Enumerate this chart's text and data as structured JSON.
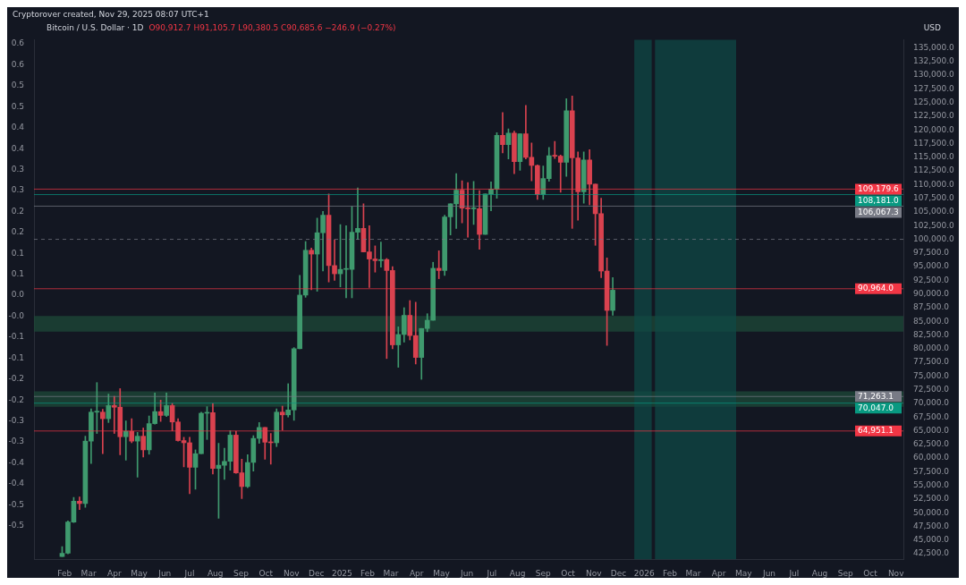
{
  "chart_data": {
    "type": "candlestick",
    "title": "Bitcoin / U.S. Dollar · 1D",
    "subtitle": "O90,912.7 H91,105.7 L90,380.5 C90,685.6 −246.9 (−0.27%)",
    "ylabel": "USD",
    "annotations": [
      "Cryptorover created, Nov 29, 2025 08:07 UTC+1"
    ],
    "x": [
      "2024-01-29",
      "2024-02-05",
      "2024-02-12",
      "2024-02-19",
      "2024-02-26",
      "2024-03-04",
      "2024-03-11",
      "2024-03-18",
      "2024-03-25",
      "2024-04-01",
      "2024-04-08",
      "2024-04-15",
      "2024-04-22",
      "2024-04-29",
      "2024-05-06",
      "2024-05-13",
      "2024-05-20",
      "2024-05-27",
      "2024-06-03",
      "2024-06-10",
      "2024-06-17",
      "2024-06-24",
      "2024-07-01",
      "2024-07-08",
      "2024-07-15",
      "2024-07-22",
      "2024-07-29",
      "2024-08-05",
      "2024-08-12",
      "2024-08-19",
      "2024-08-26",
      "2024-09-02",
      "2024-09-09",
      "2024-09-16",
      "2024-09-23",
      "2024-09-30",
      "2024-10-07",
      "2024-10-14",
      "2024-10-21",
      "2024-10-28",
      "2024-11-04",
      "2024-11-11",
      "2024-11-18",
      "2024-11-25",
      "2024-12-02",
      "2024-12-09",
      "2024-12-16",
      "2024-12-23",
      "2024-12-30",
      "2025-01-06",
      "2025-01-13",
      "2025-01-20",
      "2025-01-27",
      "2025-02-03",
      "2025-02-10",
      "2025-02-17",
      "2025-02-24",
      "2025-03-03",
      "2025-03-10",
      "2025-03-17",
      "2025-03-24",
      "2025-03-31",
      "2025-04-07",
      "2025-04-14",
      "2025-04-21",
      "2025-04-28",
      "2025-05-05",
      "2025-05-12",
      "2025-05-19",
      "2025-05-26",
      "2025-06-02",
      "2025-06-09",
      "2025-06-16",
      "2025-06-23",
      "2025-06-30",
      "2025-07-07",
      "2025-07-14",
      "2025-07-21",
      "2025-07-28",
      "2025-08-04",
      "2025-08-11",
      "2025-08-18",
      "2025-08-25",
      "2025-09-01",
      "2025-09-08",
      "2025-09-15",
      "2025-09-22",
      "2025-09-29",
      "2025-10-06",
      "2025-10-13",
      "2025-10-20",
      "2025-10-27",
      "2025-11-03",
      "2025-11-10",
      "2025-11-17",
      "2025-11-24"
    ],
    "ohlc": [
      [
        42000,
        43800,
        42000,
        42600
      ],
      [
        42600,
        48500,
        42500,
        48300
      ],
      [
        48300,
        52800,
        48200,
        52100
      ],
      [
        52100,
        52900,
        50600,
        51700
      ],
      [
        51700,
        64000,
        51000,
        63100
      ],
      [
        63100,
        69000,
        59000,
        68400
      ],
      [
        68400,
        73800,
        64500,
        68400
      ],
      [
        68400,
        68900,
        60800,
        67200
      ],
      [
        67200,
        71700,
        66500,
        69600
      ],
      [
        69600,
        71300,
        64500,
        69300
      ],
      [
        69300,
        72700,
        60600,
        63900
      ],
      [
        63900,
        66800,
        59600,
        64900
      ],
      [
        64900,
        67200,
        62800,
        63100
      ],
      [
        63100,
        64700,
        56500,
        64000
      ],
      [
        64000,
        65500,
        60200,
        61500
      ],
      [
        61500,
        67700,
        60700,
        66300
      ],
      [
        66300,
        71900,
        66200,
        68500
      ],
      [
        68500,
        70600,
        66700,
        67800
      ],
      [
        67800,
        71900,
        67600,
        69600
      ],
      [
        69600,
        70000,
        65000,
        66600
      ],
      [
        66600,
        67200,
        63100,
        63200
      ],
      [
        63200,
        63800,
        58400,
        62800
      ],
      [
        62800,
        63800,
        53500,
        58300
      ],
      [
        58300,
        61500,
        54300,
        60800
      ],
      [
        60800,
        68400,
        60800,
        68200
      ],
      [
        68200,
        69400,
        63400,
        68300
      ],
      [
        68300,
        70000,
        57100,
        58100
      ],
      [
        58100,
        62700,
        49000,
        58700
      ],
      [
        58700,
        61800,
        56100,
        59400
      ],
      [
        59400,
        65000,
        57800,
        64200
      ],
      [
        64200,
        64900,
        57200,
        57300
      ],
      [
        57300,
        59800,
        52600,
        54800
      ],
      [
        54800,
        60600,
        54600,
        59200
      ],
      [
        59200,
        64100,
        57600,
        63600
      ],
      [
        63600,
        66500,
        62700,
        65600
      ],
      [
        65600,
        65600,
        59800,
        62900
      ],
      [
        62900,
        64500,
        58900,
        62800
      ],
      [
        62800,
        69000,
        62100,
        68400
      ],
      [
        68400,
        69500,
        65100,
        67900
      ],
      [
        67900,
        73600,
        67500,
        68800
      ],
      [
        68800,
        80200,
        66900,
        80000
      ],
      [
        80000,
        93400,
        80000,
        89800
      ],
      [
        89800,
        99600,
        89400,
        98000
      ],
      [
        98000,
        98400,
        90800,
        97300
      ],
      [
        97300,
        103900,
        90500,
        101200
      ],
      [
        101200,
        105100,
        94200,
        104400
      ],
      [
        104400,
        108300,
        92200,
        95200
      ],
      [
        95200,
        99900,
        92500,
        93700
      ],
      [
        93700,
        102700,
        91300,
        94500
      ],
      [
        94500,
        102500,
        89300,
        94500
      ],
      [
        94500,
        106000,
        89300,
        101300
      ],
      [
        101300,
        109400,
        100000,
        102000
      ],
      [
        102000,
        106500,
        97700,
        97700
      ],
      [
        97700,
        102500,
        91200,
        96400
      ],
      [
        96400,
        98800,
        94000,
        96100
      ],
      [
        96100,
        99500,
        94900,
        96300
      ],
      [
        96300,
        96500,
        78200,
        94300
      ],
      [
        94300,
        95000,
        80000,
        80700
      ],
      [
        80700,
        84000,
        76600,
        82600
      ],
      [
        82600,
        87500,
        81200,
        86100
      ],
      [
        86100,
        88800,
        81600,
        82400
      ],
      [
        82400,
        88500,
        77200,
        78400
      ],
      [
        78400,
        83700,
        74400,
        83700
      ],
      [
        83700,
        86400,
        83100,
        85200
      ],
      [
        85200,
        95800,
        85200,
        94700
      ],
      [
        94700,
        97900,
        92800,
        94300
      ],
      [
        94300,
        104400,
        93400,
        104100
      ],
      [
        104100,
        106500,
        100800,
        106500
      ],
      [
        106500,
        112000,
        102000,
        109000
      ],
      [
        109000,
        110700,
        103000,
        105700
      ],
      [
        105700,
        110400,
        100400,
        105600
      ],
      [
        105600,
        110600,
        102700,
        105600
      ],
      [
        105600,
        108900,
        98200,
        100900
      ],
      [
        100900,
        108300,
        100900,
        108300
      ],
      [
        108300,
        110500,
        105200,
        109200
      ],
      [
        109200,
        119500,
        107500,
        119000
      ],
      [
        119000,
        123200,
        115800,
        117300
      ],
      [
        117300,
        120200,
        114700,
        119400
      ],
      [
        119400,
        119800,
        112000,
        114200
      ],
      [
        114200,
        119300,
        112600,
        119300
      ],
      [
        119300,
        124500,
        114700,
        115000
      ],
      [
        115000,
        117600,
        110700,
        113500
      ],
      [
        113500,
        113600,
        107300,
        108200
      ],
      [
        108200,
        113400,
        107300,
        111100
      ],
      [
        111100,
        116800,
        110600,
        115300
      ],
      [
        115300,
        117900,
        114800,
        115200
      ],
      [
        115200,
        115400,
        108600,
        114100
      ],
      [
        114100,
        125700,
        111500,
        123500
      ],
      [
        123500,
        126200,
        102000,
        114900
      ],
      [
        114900,
        116000,
        103500,
        108700
      ],
      [
        108700,
        116000,
        106600,
        114500
      ],
      [
        114500,
        116400,
        106300,
        110100
      ],
      [
        110100,
        110100,
        98900,
        104700
      ],
      [
        104700,
        107500,
        93000,
        94200
      ],
      [
        94200,
        96600,
        80600,
        87000
      ],
      [
        87000,
        93000,
        86100,
        90700
      ]
    ],
    "xlim": [
      "2023-12-26",
      "2026-11-10"
    ],
    "xticks": [
      {
        "value": "2024-02-01",
        "label": "Feb"
      },
      {
        "value": "2024-03-01",
        "label": "Mar"
      },
      {
        "value": "2024-04-01",
        "label": "Apr"
      },
      {
        "value": "2024-05-01",
        "label": "May"
      },
      {
        "value": "2024-06-01",
        "label": "Jun"
      },
      {
        "value": "2024-07-01",
        "label": "Jul"
      },
      {
        "value": "2024-08-01",
        "label": "Aug"
      },
      {
        "value": "2024-09-01",
        "label": "Sep"
      },
      {
        "value": "2024-10-01",
        "label": "Oct"
      },
      {
        "value": "2024-11-01",
        "label": "Nov"
      },
      {
        "value": "2024-12-01",
        "label": "Dec"
      },
      {
        "value": "2025-01-01",
        "label": "2025"
      },
      {
        "value": "2025-02-01",
        "label": "Feb"
      },
      {
        "value": "2025-03-01",
        "label": "Mar"
      },
      {
        "value": "2025-04-01",
        "label": "Apr"
      },
      {
        "value": "2025-05-01",
        "label": "May"
      },
      {
        "value": "2025-06-01",
        "label": "Jun"
      },
      {
        "value": "2025-07-01",
        "label": "Jul"
      },
      {
        "value": "2025-08-01",
        "label": "Aug"
      },
      {
        "value": "2025-09-01",
        "label": "Sep"
      },
      {
        "value": "2025-10-01",
        "label": "Oct"
      },
      {
        "value": "2025-11-01",
        "label": "Nov"
      },
      {
        "value": "2025-12-01",
        "label": "Dec"
      },
      {
        "value": "2026-01-01",
        "label": "2026"
      },
      {
        "value": "2026-02-01",
        "label": "Feb"
      },
      {
        "value": "2026-03-01",
        "label": "Mar"
      },
      {
        "value": "2026-04-01",
        "label": "Apr"
      },
      {
        "value": "2026-05-01",
        "label": "May"
      },
      {
        "value": "2026-06-01",
        "label": "Jun"
      },
      {
        "value": "2026-07-01",
        "label": "Jul"
      },
      {
        "value": "2026-08-01",
        "label": "Aug"
      },
      {
        "value": "2026-09-01",
        "label": "Sep"
      },
      {
        "value": "2026-10-01",
        "label": "Oct"
      },
      {
        "value": "2026-11-01",
        "label": "Nov"
      }
    ],
    "ylim": [
      41500,
      136500
    ],
    "yticks": [
      {
        "value": 42500,
        "label": "42,500.0"
      },
      {
        "value": 45000,
        "label": "45,000.0"
      },
      {
        "value": 47500,
        "label": "47,500.0"
      },
      {
        "value": 50000,
        "label": "50,000.0"
      },
      {
        "value": 52500,
        "label": "52,500.0"
      },
      {
        "value": 55000,
        "label": "55,000.0"
      },
      {
        "value": 57500,
        "label": "57,500.0"
      },
      {
        "value": 60000,
        "label": "60,000.0"
      },
      {
        "value": 62500,
        "label": "62,500.0"
      },
      {
        "value": 65000,
        "label": "65,000.0"
      },
      {
        "value": 67500,
        "label": "67,500.0"
      },
      {
        "value": 70000,
        "label": "70,000.0"
      },
      {
        "value": 72500,
        "label": "72,500.0"
      },
      {
        "value": 75000,
        "label": "75,000.0"
      },
      {
        "value": 77500,
        "label": "77,500.0"
      },
      {
        "value": 80000,
        "label": "80,000.0"
      },
      {
        "value": 82500,
        "label": "82,500.0"
      },
      {
        "value": 85000,
        "label": "85,000.0"
      },
      {
        "value": 87500,
        "label": "87,500.0"
      },
      {
        "value": 90000,
        "label": "90,000.0"
      },
      {
        "value": 92500,
        "label": "92,500.0"
      },
      {
        "value": 95000,
        "label": "95,000.0"
      },
      {
        "value": 97500,
        "label": "97,500.0"
      },
      {
        "value": 100000,
        "label": "100,000.0"
      },
      {
        "value": 102500,
        "label": "102,500.0"
      },
      {
        "value": 105000,
        "label": "105,000.0"
      },
      {
        "value": 107500,
        "label": "107,500.0"
      },
      {
        "value": 110000,
        "label": "110,000.0"
      },
      {
        "value": 112500,
        "label": "112,500.0"
      },
      {
        "value": 115000,
        "label": "115,000.0"
      },
      {
        "value": 117500,
        "label": "117,500.0"
      },
      {
        "value": 120000,
        "label": "120,000.0"
      },
      {
        "value": 122500,
        "label": "122,500.0"
      },
      {
        "value": 125000,
        "label": "125,000.0"
      },
      {
        "value": 127500,
        "label": "127,500.0"
      },
      {
        "value": 130000,
        "label": "130,000.0"
      },
      {
        "value": 132500,
        "label": "132,500.0"
      },
      {
        "value": 135000,
        "label": "135,000.0"
      }
    ],
    "y2lim": [
      -0.63,
      0.61
    ],
    "y2ticks": [
      {
        "value": 0.6,
        "label": "0.6"
      },
      {
        "value": 0.55,
        "label": "0.6"
      },
      {
        "value": 0.5,
        "label": "0.5"
      },
      {
        "value": 0.45,
        "label": "0.5"
      },
      {
        "value": 0.4,
        "label": "0.4"
      },
      {
        "value": 0.35,
        "label": "0.4"
      },
      {
        "value": 0.3,
        "label": "0.3"
      },
      {
        "value": 0.25,
        "label": "0.3"
      },
      {
        "value": 0.2,
        "label": "0.2"
      },
      {
        "value": 0.15,
        "label": "0.2"
      },
      {
        "value": 0.1,
        "label": "0.1"
      },
      {
        "value": 0.05,
        "label": "0.1"
      },
      {
        "value": 0,
        "label": "0.0"
      },
      {
        "value": -0.05,
        "label": "-0.0"
      },
      {
        "value": -0.1,
        "label": "-0.1"
      },
      {
        "value": -0.15,
        "label": "-0.1"
      },
      {
        "value": -0.2,
        "label": "-0.2"
      },
      {
        "value": -0.25,
        "label": "-0.2"
      },
      {
        "value": -0.3,
        "label": "-0.3"
      },
      {
        "value": -0.35,
        "label": "-0.3"
      },
      {
        "value": -0.4,
        "label": "-0.4"
      },
      {
        "value": -0.45,
        "label": "-0.4"
      },
      {
        "value": -0.5,
        "label": "-0.5"
      },
      {
        "value": -0.55,
        "label": "-0.5"
      }
    ],
    "bands": [
      {
        "axis": "y",
        "from": 83100,
        "to": 86000,
        "color": "#1d4a38"
      },
      {
        "axis": "y",
        "from": 69400,
        "to": 72200,
        "color": "#1d4a38"
      },
      {
        "axis": "x",
        "from": "2025-12-20",
        "to": "2026-01-10",
        "color": "#0f4846"
      },
      {
        "axis": "x",
        "from": "2026-01-14",
        "to": "2026-04-22",
        "color": "#0f4846"
      }
    ],
    "ref_lines": [
      {
        "axis": "y",
        "value": 109179.6,
        "label": "109,179.6",
        "color": "#f23645"
      },
      {
        "axis": "y",
        "value": 108181.0,
        "label": "108,181.0",
        "color": "#089981"
      },
      {
        "axis": "y",
        "value": 106067.3,
        "label": "106,067.3",
        "color": "#787b86"
      },
      {
        "axis": "y",
        "value": 100000,
        "color": "#787b86",
        "line_style": "dashed"
      },
      {
        "axis": "y",
        "value": 90964.0,
        "label": "90,964.0",
        "color": "#f23645"
      },
      {
        "axis": "y",
        "value": 71263.1,
        "label": "71,263.1",
        "color": "#787b86"
      },
      {
        "axis": "y",
        "value": 70047.0,
        "label": "70,047.0",
        "color": "#089981"
      },
      {
        "axis": "y",
        "value": 64951.1,
        "label": "64,951.1",
        "color": "#f23645"
      }
    ]
  }
}
